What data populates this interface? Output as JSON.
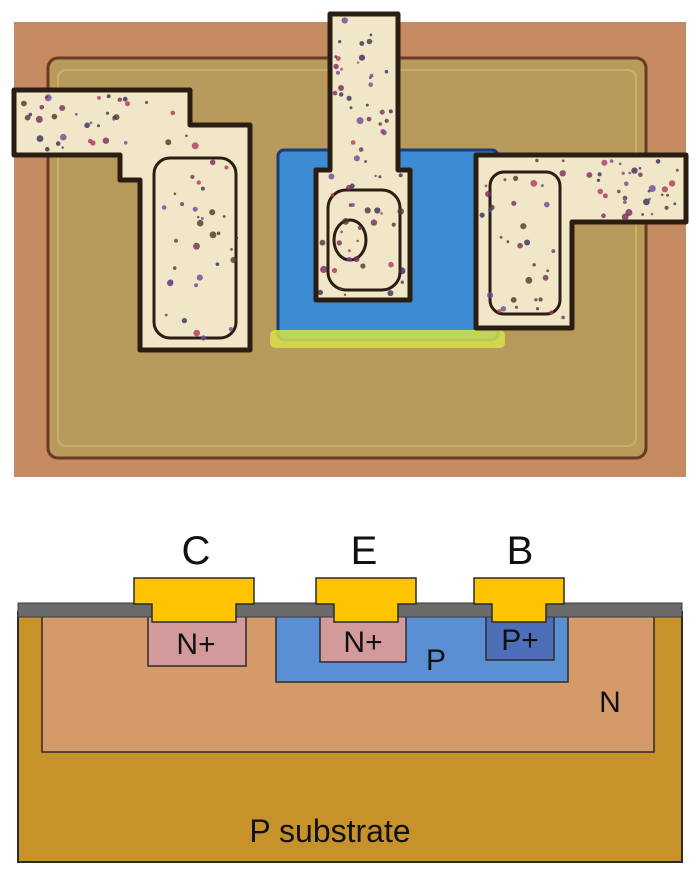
{
  "photo": {
    "description_layers": [
      "orange-die",
      "yellow-outline",
      "n-well-region",
      "p-base-region",
      "metal-traces",
      "contacts"
    ]
  },
  "cross_section": {
    "terminals": {
      "collector": "C",
      "emitter": "E",
      "base": "B"
    },
    "regions": {
      "collector_contact": "N+",
      "emitter_diffusion": "N+",
      "base_contact": "P+",
      "base_region": "P",
      "collector_region": "N",
      "substrate": "P substrate"
    }
  },
  "colors": {
    "die_orange": "#c58a62",
    "gold_field": "#b79a5c",
    "trace_yellow": "#e8d24a",
    "base_blue": "#3d8bd0",
    "contact_dark_blue": "#1f3d8a",
    "metal_cream": "#efe7c8",
    "substrate_gold": "#c8922a",
    "n_region_tan": "#d49a6a",
    "np_pink": "#d39a9c",
    "p_blue": "#5b8fd3",
    "pplus_blue": "#4e6fb7",
    "metal_gold": "#ffc400",
    "oxide_gray": "#6a6a6a"
  }
}
